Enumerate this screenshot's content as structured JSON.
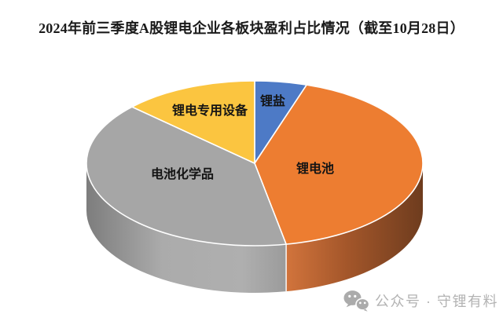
{
  "title": "2024年前三季度A股锂电企业各板块盈利占比情况（截至10月28日）",
  "watermark": {
    "icon": "wechat-icon",
    "text": "公众号 · 守锂有料",
    "color": "#b3b3b3"
  },
  "chart_data": {
    "type": "pie",
    "style": "3d",
    "title": "2024年前三季度A股锂电企业各板块盈利占比情况（截至10月28日）",
    "legend": "none",
    "labels_position": "inside-slices",
    "start_angle_deg": 0,
    "direction": "clockwise",
    "values_estimated_from_angles": true,
    "slices": [
      {
        "label": "锂盐",
        "value_pct": 5,
        "color": "#4D7AC6"
      },
      {
        "label": "锂电池",
        "value_pct": 42,
        "color": "#ED7D31"
      },
      {
        "label": "电池化学品",
        "value_pct": 40,
        "color": "#A6A6A6"
      },
      {
        "label": "锂电专用设备",
        "value_pct": 13,
        "color": "#FBC540"
      }
    ]
  }
}
